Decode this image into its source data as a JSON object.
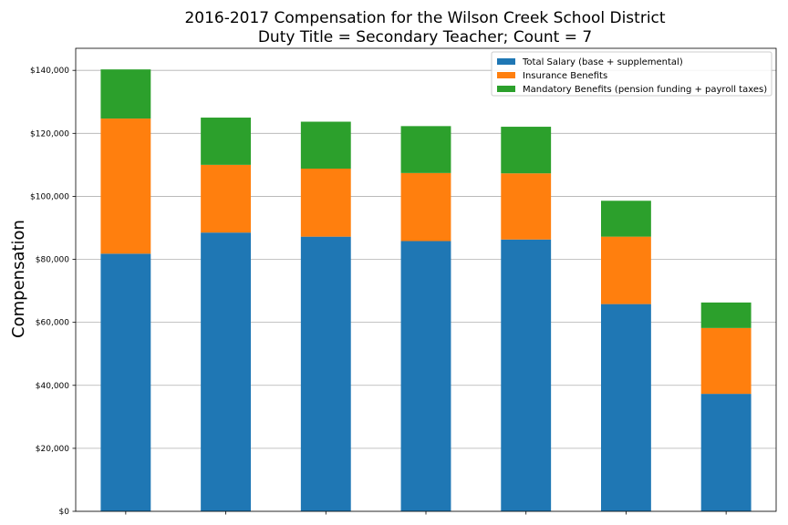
{
  "chart_data": {
    "type": "bar",
    "stacked": true,
    "title_line1": "2016-2017 Compensation for the Wilson Creek School District",
    "title_line2": "Duty Title = Secondary Teacher; Count = 7",
    "xlabel": "",
    "ylabel": "Compensation",
    "ylim": [
      0,
      147000
    ],
    "yticks": [
      0,
      20000,
      40000,
      60000,
      80000,
      100000,
      120000,
      140000
    ],
    "ytick_labels": [
      "$0",
      "$20,000",
      "$40,000",
      "$60,000",
      "$80,000",
      "$100,000",
      "$120,000",
      "$140,000"
    ],
    "grid": "horizontal",
    "legend_position": "top-right",
    "categories": [
      "",
      "",
      "",
      "",
      "",
      "",
      ""
    ],
    "series": [
      {
        "name": "Total Salary (base + supplemental)",
        "color": "#1f77b4",
        "values": [
          81800,
          88500,
          87200,
          85800,
          86300,
          65800,
          37300
        ]
      },
      {
        "name": "Insurance Benefits",
        "color": "#ff7f0e",
        "values": [
          42900,
          21500,
          21600,
          21600,
          21000,
          21400,
          20900
        ]
      },
      {
        "name": "Mandatory Benefits (pension funding + payroll taxes)",
        "color": "#2ca02c",
        "values": [
          15600,
          15000,
          14900,
          14900,
          14800,
          11400,
          8100
        ]
      }
    ]
  }
}
